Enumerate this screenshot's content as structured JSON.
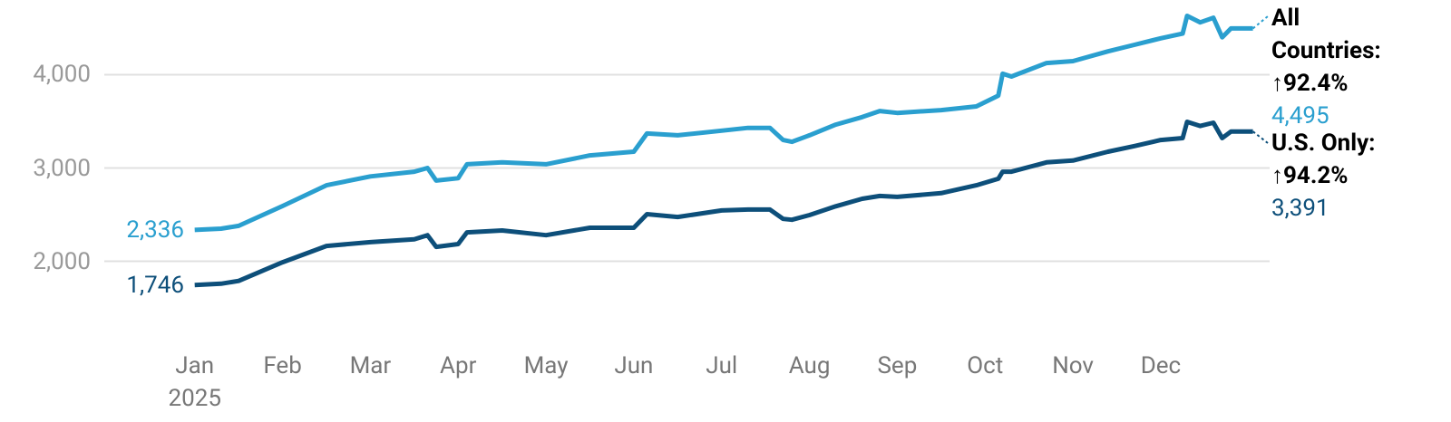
{
  "chart_data": {
    "type": "line",
    "x": [
      0,
      0.3,
      0.5,
      1.0,
      1.5,
      2.0,
      2.5,
      2.65,
      2.75,
      3.0,
      3.1,
      3.5,
      4.0,
      4.5,
      5.0,
      5.15,
      5.5,
      6.0,
      6.3,
      6.55,
      6.7,
      6.8,
      7.0,
      7.3,
      7.6,
      7.8,
      8.0,
      8.5,
      8.9,
      9.15,
      9.2,
      9.3,
      9.7,
      10.0,
      10.4,
      10.7,
      11.0,
      11.25,
      11.3,
      11.45,
      11.6,
      11.7,
      11.8,
      12.05
    ],
    "xlim": [
      -1.03,
      12.24
    ],
    "xticks": [
      {
        "value": 0,
        "label": "Jan\n2025"
      },
      {
        "value": 1,
        "label": "Feb"
      },
      {
        "value": 2,
        "label": "Mar"
      },
      {
        "value": 3,
        "label": "Apr"
      },
      {
        "value": 4,
        "label": "May"
      },
      {
        "value": 5,
        "label": "Jun"
      },
      {
        "value": 6,
        "label": "Jul"
      },
      {
        "value": 7,
        "label": "Aug"
      },
      {
        "value": 8,
        "label": "Sep"
      },
      {
        "value": 9,
        "label": "Oct"
      },
      {
        "value": 10,
        "label": "Nov"
      },
      {
        "value": 11,
        "label": "Dec"
      }
    ],
    "ylim": [
      1200,
      4800
    ],
    "yticks": [
      {
        "value": 2000,
        "label": "2,000"
      },
      {
        "value": 3000,
        "label": "3,000"
      },
      {
        "value": 4000,
        "label": "4,000"
      }
    ],
    "grid": true,
    "series": [
      {
        "name": "All Countries:",
        "change": "↑92.4%",
        "color": "#2a9fcf",
        "values": [
          2336,
          2350,
          2380,
          2592,
          2815,
          2910,
          2960,
          3000,
          2865,
          2890,
          3040,
          3060,
          3040,
          3135,
          3175,
          3370,
          3350,
          3400,
          3430,
          3430,
          3300,
          3280,
          3350,
          3465,
          3545,
          3610,
          3590,
          3620,
          3660,
          3775,
          4010,
          3980,
          4125,
          4145,
          4250,
          4320,
          4390,
          4440,
          4630,
          4560,
          4610,
          4400,
          4495,
          4495
        ],
        "value_labels": [
          "2,336",
          null,
          null,
          null,
          null,
          null,
          null,
          null,
          null,
          null,
          null,
          null,
          null,
          null,
          null,
          null,
          null,
          null,
          null,
          null,
          null,
          null,
          null,
          null,
          null,
          null,
          null,
          null,
          null,
          null,
          null,
          null,
          null,
          null,
          null,
          null,
          null,
          null,
          null,
          null,
          null,
          null,
          null,
          "4,495"
        ]
      },
      {
        "name": "U.S. Only:",
        "change": "↑94.2%",
        "color": "#0d4f7a",
        "values": [
          1746,
          1760,
          1790,
          1990,
          2165,
          2205,
          2235,
          2280,
          2155,
          2185,
          2310,
          2330,
          2280,
          2360,
          2360,
          2505,
          2475,
          2545,
          2555,
          2555,
          2455,
          2445,
          2495,
          2590,
          2670,
          2700,
          2690,
          2730,
          2815,
          2885,
          2960,
          2960,
          3060,
          3080,
          3175,
          3235,
          3300,
          3320,
          3495,
          3450,
          3485,
          3320,
          3390,
          3391
        ],
        "value_labels": [
          "1,746",
          null,
          null,
          null,
          null,
          null,
          null,
          null,
          null,
          null,
          null,
          null,
          null,
          null,
          null,
          null,
          null,
          null,
          null,
          null,
          null,
          null,
          null,
          null,
          null,
          null,
          null,
          null,
          null,
          null,
          null,
          null,
          null,
          null,
          null,
          null,
          null,
          null,
          null,
          null,
          null,
          null,
          null,
          "3,391"
        ]
      }
    ]
  }
}
